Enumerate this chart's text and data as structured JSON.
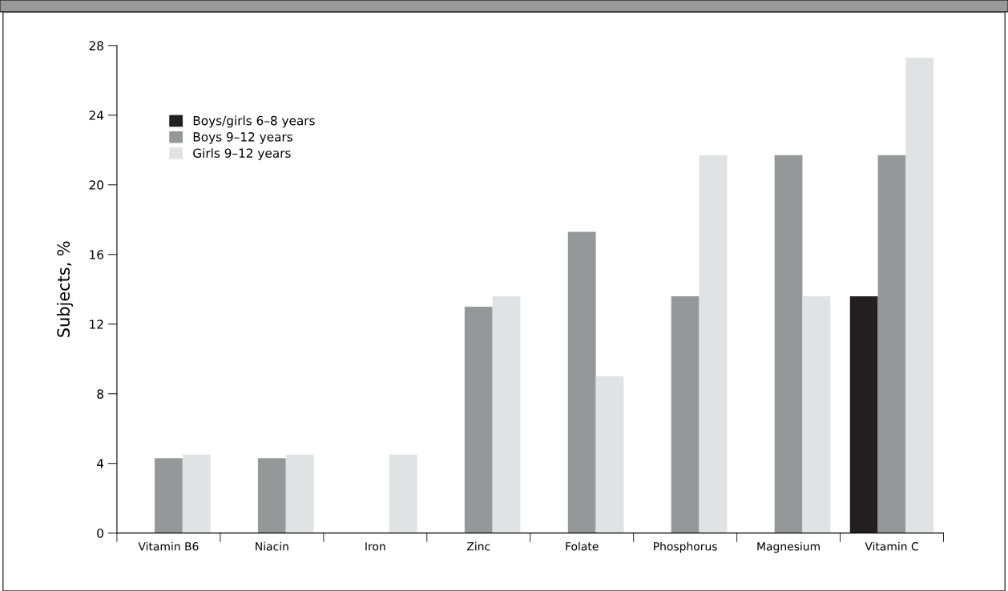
{
  "chart_data": {
    "type": "bar",
    "ylabel": "Subjects, %",
    "categories": [
      "Vitamin B6",
      "Niacin",
      "Iron",
      "Zinc",
      "Folate",
      "Phosphorus",
      "Magnesium",
      "Vitamin C"
    ],
    "series": [
      {
        "name": "Boys/girls 6–8 years",
        "color": "#231f20",
        "values": [
          null,
          null,
          null,
          null,
          null,
          null,
          null,
          13.6
        ]
      },
      {
        "name": "Boys 9–12 years",
        "color": "#969798",
        "values": [
          4.3,
          4.3,
          null,
          13.0,
          17.3,
          13.6,
          21.7,
          21.7
        ]
      },
      {
        "name": "Girls 9–12 years",
        "color": "#e1e2e3",
        "values": [
          4.5,
          4.5,
          4.5,
          13.6,
          9.0,
          21.7,
          13.6,
          27.3
        ]
      }
    ],
    "ylim": [
      0,
      28
    ],
    "yticks": [
      0,
      4,
      8,
      12,
      16,
      20,
      24,
      28
    ],
    "grid": false,
    "legend": "top left"
  }
}
